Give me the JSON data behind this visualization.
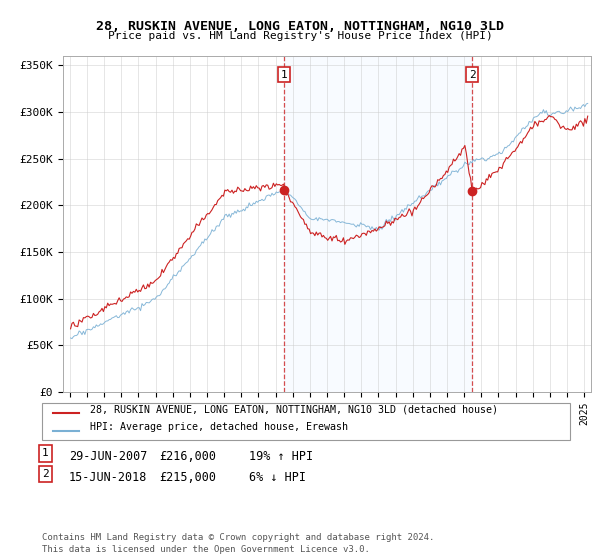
{
  "title": "28, RUSKIN AVENUE, LONG EATON, NOTTINGHAM, NG10 3LD",
  "subtitle": "Price paid vs. HM Land Registry's House Price Index (HPI)",
  "ylabel_ticks": [
    "£0",
    "£50K",
    "£100K",
    "£150K",
    "£200K",
    "£250K",
    "£300K",
    "£350K"
  ],
  "ytick_vals": [
    0,
    50000,
    100000,
    150000,
    200000,
    250000,
    300000,
    350000
  ],
  "ylim": [
    0,
    360000
  ],
  "legend_line1": "28, RUSKIN AVENUE, LONG EATON, NOTTINGHAM, NG10 3LD (detached house)",
  "legend_line2": "HPI: Average price, detached house, Erewash",
  "annotation1_label": "1",
  "annotation1_date": "29-JUN-2007",
  "annotation1_price": "£216,000",
  "annotation1_hpi": "19% ↑ HPI",
  "annotation2_label": "2",
  "annotation2_date": "15-JUN-2018",
  "annotation2_price": "£215,000",
  "annotation2_hpi": "6% ↓ HPI",
  "footnote": "Contains HM Land Registry data © Crown copyright and database right 2024.\nThis data is licensed under the Open Government Licence v3.0.",
  "property_color": "#cc2222",
  "hpi_color": "#7ab0d4",
  "shade_color": "#ddeeff",
  "background_color": "#ffffff",
  "grid_color": "#cccccc",
  "sale1_x": 2007.49,
  "sale1_y": 216000,
  "sale2_x": 2018.46,
  "sale2_y": 215000,
  "xlim_left": 1994.6,
  "xlim_right": 2025.4
}
